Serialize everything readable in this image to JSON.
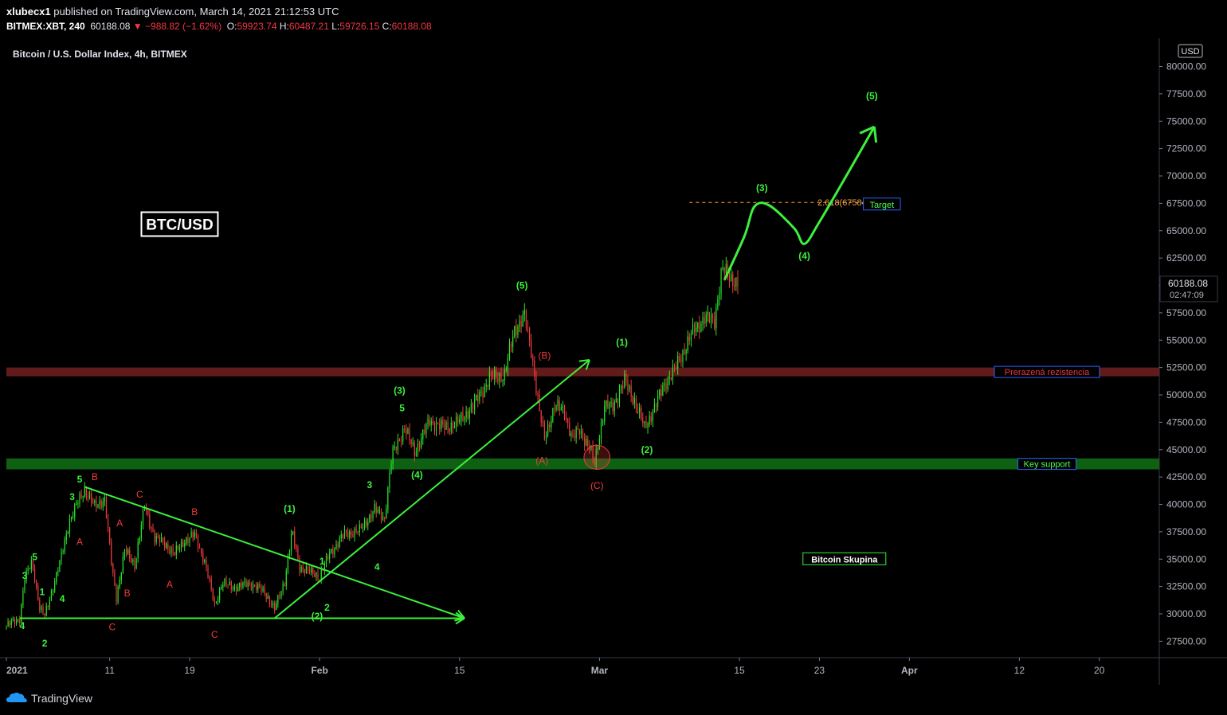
{
  "header": {
    "author": "xlubecx1",
    "published_text": "published on TradingView.com, March 14, 2021 21:12:53 UTC",
    "symbol": "BITMEX:XBT, 240",
    "last": "60188.08",
    "change": "−988.82 (−1.62%)",
    "open_label": "O:",
    "open": "59923.74",
    "high_label": "H:",
    "high": "60487.21",
    "low_label": "L:",
    "low": "59726.15",
    "close_label": "C:",
    "close": "60188.08"
  },
  "footer": {
    "brand": "TradingView",
    "logo_icon": "tradingview-logo-icon"
  },
  "chart_data": {
    "type": "candlestick",
    "title": "Bitcoin / U.S. Dollar Index, 4h, BITMEX",
    "currency": "USD",
    "ylim": [
      26000,
      82000
    ],
    "y_ticks": [
      "27500.00",
      "30000.00",
      "32500.00",
      "35000.00",
      "37500.00",
      "40000.00",
      "42500.00",
      "45000.00",
      "47500.00",
      "50000.00",
      "52500.00",
      "55000.00",
      "57500.00",
      "60000.00",
      "62500.00",
      "65000.00",
      "67500.00",
      "70000.00",
      "72500.00",
      "75000.00",
      "77500.00",
      "80000.00"
    ],
    "x_ticks": [
      "2021",
      "11",
      "19",
      "Feb",
      "15",
      "Mar",
      "15",
      "23",
      "Apr",
      "12",
      "20"
    ],
    "x_start": "2020-12-31T16:00",
    "x_end": "2021-04-26",
    "price_path": [
      [
        "2020-12-31T16:00",
        28900
      ],
      [
        "2021-01-02T00:00",
        29600
      ],
      [
        "2021-01-02T12:00",
        33200
      ],
      [
        "2021-01-03T06:00",
        34800
      ],
      [
        "2021-01-04T00:00",
        30500
      ],
      [
        "2021-01-04T12:00",
        29800
      ],
      [
        "2021-01-06T00:00",
        34600
      ],
      [
        "2021-01-07T00:00",
        38600
      ],
      [
        "2021-01-08T12:00",
        41400
      ],
      [
        "2021-01-09T12:00",
        39800
      ],
      [
        "2021-01-10T12:00",
        40500
      ],
      [
        "2021-01-11T06:00",
        34000
      ],
      [
        "2021-01-11T16:00",
        31500
      ],
      [
        "2021-01-12T12:00",
        35800
      ],
      [
        "2021-01-13T12:00",
        34500
      ],
      [
        "2021-01-14T12:00",
        39800
      ],
      [
        "2021-01-15T12:00",
        37000
      ],
      [
        "2021-01-16T12:00",
        36400
      ],
      [
        "2021-01-17T12:00",
        35500
      ],
      [
        "2021-01-18T12:00",
        36700
      ],
      [
        "2021-01-19T12:00",
        37200
      ],
      [
        "2021-01-20T12:00",
        34800
      ],
      [
        "2021-01-21T12:00",
        30800
      ],
      [
        "2021-01-22T06:00",
        32800
      ],
      [
        "2021-01-23T12:00",
        32400
      ],
      [
        "2021-01-25T00:00",
        32800
      ],
      [
        "2021-01-26T12:00",
        32000
      ],
      [
        "2021-01-27T12:00",
        30400
      ],
      [
        "2021-01-28T12:00",
        33000
      ],
      [
        "2021-01-29T06:00",
        37500
      ],
      [
        "2021-01-30T00:00",
        34300
      ],
      [
        "2021-02-01T00:00",
        33400
      ],
      [
        "2021-02-02T00:00",
        35500
      ],
      [
        "2021-02-03T12:00",
        37300
      ],
      [
        "2021-02-05T00:00",
        37600
      ],
      [
        "2021-02-06T12:00",
        39500
      ],
      [
        "2021-02-07T12:00",
        38800
      ],
      [
        "2021-02-08T06:00",
        44500
      ],
      [
        "2021-02-09T12:00",
        47000
      ],
      [
        "2021-02-10T12:00",
        44800
      ],
      [
        "2021-02-12T00:00",
        47600
      ],
      [
        "2021-02-13T12:00",
        47000
      ],
      [
        "2021-02-15T00:00",
        47600
      ],
      [
        "2021-02-16T12:00",
        49200
      ],
      [
        "2021-02-18T00:00",
        51500
      ],
      [
        "2021-02-19T12:00",
        51800
      ],
      [
        "2021-02-20T12:00",
        56000
      ],
      [
        "2021-02-21T12:00",
        57200
      ],
      [
        "2021-02-22T06:00",
        53600
      ],
      [
        "2021-02-23T00:00",
        48500
      ],
      [
        "2021-02-23T12:00",
        46000
      ],
      [
        "2021-02-24T12:00",
        49000
      ],
      [
        "2021-02-25T12:00",
        48500
      ],
      [
        "2021-02-26T06:00",
        46000
      ],
      [
        "2021-02-27T00:00",
        46800
      ],
      [
        "2021-02-28T00:00",
        45200
      ],
      [
        "2021-02-28T12:00",
        43700
      ],
      [
        "2021-03-01T12:00",
        49000
      ],
      [
        "2021-03-02T06:00",
        48800
      ],
      [
        "2021-03-03T12:00",
        51300
      ],
      [
        "2021-03-04T12:00",
        49500
      ],
      [
        "2021-03-05T12:00",
        47000
      ],
      [
        "2021-03-06T12:00",
        48800
      ],
      [
        "2021-03-07T12:00",
        51000
      ],
      [
        "2021-03-08T12:00",
        52300
      ],
      [
        "2021-03-09T12:00",
        54200
      ],
      [
        "2021-03-10T12:00",
        56000
      ],
      [
        "2021-03-11T12:00",
        57000
      ],
      [
        "2021-03-12T12:00",
        56800
      ],
      [
        "2021-03-13T06:00",
        61500
      ],
      [
        "2021-03-14T00:00",
        60800
      ],
      [
        "2021-03-14T21:00",
        60188
      ]
    ],
    "projection": [
      [
        "2021-03-13T12:00",
        60500
      ],
      [
        "2021-03-15T12:00",
        64500
      ],
      [
        "2021-03-16T12:00",
        67200
      ],
      [
        "2021-03-18T00:00",
        67300
      ],
      [
        "2021-03-20T12:00",
        65200
      ],
      [
        "2021-03-21T12:00",
        63800
      ],
      [
        "2021-03-23T00:00",
        65800
      ],
      [
        "2021-03-26T00:00",
        70500
      ],
      [
        "2021-03-28T12:00",
        74500
      ]
    ],
    "trendlines": [
      {
        "name": "upper",
        "points": [
          [
            "2021-01-08T12:00",
            41600
          ],
          [
            "2021-02-15T12:00",
            29600
          ]
        ]
      },
      {
        "name": "lower",
        "points": [
          [
            "2021-01-02T00:00",
            29600
          ],
          [
            "2021-02-15T12:00",
            29600
          ]
        ]
      },
      {
        "name": "channel",
        "points": [
          [
            "2021-01-27T12:00",
            29600
          ],
          [
            "2021-02-28T00:00",
            53200
          ]
        ]
      }
    ],
    "zones": [
      {
        "label": "Prerazená rezistencia",
        "from": 51700,
        "to": 52500,
        "color": "#6b1e1e",
        "label_color": "#f23645"
      },
      {
        "label": "Key support",
        "from": 43200,
        "to": 44200,
        "color": "#0f6b14",
        "label_color": "#4cff4c"
      }
    ],
    "fib_level": {
      "label": "2.618(67584.14)",
      "value": 67584.14,
      "from": "2021-03-10T00:00",
      "to": "2021-03-28T00:00"
    },
    "tags": [
      {
        "text": "Target",
        "at": [
          "2021-03-29T06:00",
          67400
        ],
        "color": "#4cff4c"
      },
      {
        "text": "Bitcoin Skupina",
        "at": [
          "2021-03-25T12:00",
          35000
        ],
        "color": "#ffffff"
      }
    ],
    "badge": {
      "text": "BTC/USD",
      "at": [
        "2021-01-18T00:00",
        65600
      ]
    },
    "wave_labels_green": [
      {
        "t": "4",
        "at": [
          "2021-01-02T06:00",
          28900
        ]
      },
      {
        "t": "3",
        "at": [
          "2021-01-02T12:00",
          33500
        ]
      },
      {
        "t": "5",
        "at": [
          "2021-01-03T12:00",
          35200
        ]
      },
      {
        "t": "1",
        "at": [
          "2021-01-04T06:00",
          32000
        ]
      },
      {
        "t": "2",
        "at": [
          "2021-01-04T12:00",
          27300
        ]
      },
      {
        "t": "4",
        "at": [
          "2021-01-06T06:00",
          31400
        ]
      },
      {
        "t": "3",
        "at": [
          "2021-01-07T06:00",
          40700
        ]
      },
      {
        "t": "5",
        "at": [
          "2021-01-08T00:00",
          42300
        ]
      },
      {
        "t": "(1)",
        "at": [
          "2021-01-29T00:00",
          39600
        ]
      },
      {
        "t": "1",
        "at": [
          "2021-02-01T06:00",
          34800
        ]
      },
      {
        "t": "(2)",
        "at": [
          "2021-01-31T18:00",
          29800
        ]
      },
      {
        "t": "2",
        "at": [
          "2021-02-01T18:00",
          30600
        ]
      },
      {
        "t": "4",
        "at": [
          "2021-02-06T18:00",
          34300
        ]
      },
      {
        "t": "3",
        "at": [
          "2021-02-06T00:00",
          41800
        ]
      },
      {
        "t": "(3)",
        "at": [
          "2021-02-09T00:00",
          50400
        ]
      },
      {
        "t": "5",
        "at": [
          "2021-02-09T06:00",
          48800
        ]
      },
      {
        "t": "(4)",
        "at": [
          "2021-02-10T18:00",
          42700
        ]
      },
      {
        "t": "(5)",
        "at": [
          "2021-02-21T06:00",
          60000
        ]
      },
      {
        "t": "(1)",
        "at": [
          "2021-03-03T06:00",
          54800
        ]
      },
      {
        "t": "(2)",
        "at": [
          "2021-03-05T18:00",
          45000
        ]
      },
      {
        "t": "(3)",
        "at": [
          "2021-03-17T06:00",
          68900
        ]
      },
      {
        "t": "(4)",
        "at": [
          "2021-03-21T12:00",
          62700
        ]
      },
      {
        "t": "(5)",
        "at": [
          "2021-03-28T06:00",
          77300
        ]
      }
    ],
    "wave_labels_red": [
      {
        "t": "B",
        "at": [
          "2021-01-09T12:00",
          42500
        ]
      },
      {
        "t": "A",
        "at": [
          "2021-01-08T00:00",
          36600
        ]
      },
      {
        "t": "C",
        "at": [
          "2021-01-11T06:00",
          28800
        ]
      },
      {
        "t": "A",
        "at": [
          "2021-01-12T00:00",
          38300
        ]
      },
      {
        "t": "B",
        "at": [
          "2021-01-12T18:00",
          31900
        ]
      },
      {
        "t": "C",
        "at": [
          "2021-01-14T00:00",
          40900
        ]
      },
      {
        "t": "A",
        "at": [
          "2021-01-17T00:00",
          32700
        ]
      },
      {
        "t": "B",
        "at": [
          "2021-01-19T12:00",
          39300
        ]
      },
      {
        "t": "C",
        "at": [
          "2021-01-21T12:00",
          28100
        ]
      },
      {
        "t": "(B)",
        "at": [
          "2021-02-23T12:00",
          53600
        ]
      },
      {
        "t": "(A)",
        "at": [
          "2021-02-23T06:00",
          44000
        ]
      },
      {
        "t": "(C)",
        "at": [
          "2021-02-28T18:00",
          41700
        ]
      }
    ],
    "ellipse": {
      "at": [
        "2021-02-28T18:00",
        44300
      ],
      "rx_days": 1.0,
      "ry_price": 1100
    },
    "last_price": {
      "value": "60188.08",
      "countdown": "02:47:09"
    }
  }
}
